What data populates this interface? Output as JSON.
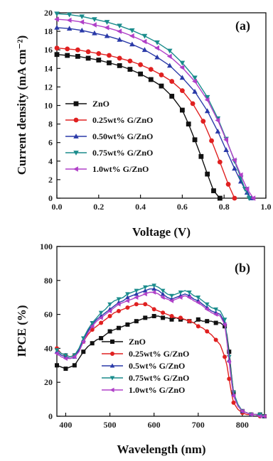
{
  "chart_data": [
    {
      "type": "line",
      "panel_label": "(a)",
      "xlabel": "Voltage (V)",
      "ylabel": "Current density (mA cm⁻²)",
      "xlim": [
        0.0,
        1.0
      ],
      "ylim": [
        0,
        20
      ],
      "xticks": [
        "0.0",
        "0.2",
        "0.4",
        "0.6",
        "0.8",
        "1.0"
      ],
      "yticks": [
        "0",
        "2",
        "4",
        "6",
        "8",
        "10",
        "12",
        "14",
        "16",
        "18",
        "20"
      ],
      "legend_position": "bottom-left",
      "series": [
        {
          "name": "ZnO",
          "color": "#111111",
          "marker": "square",
          "x": [
            0.0,
            0.05,
            0.1,
            0.15,
            0.2,
            0.25,
            0.3,
            0.35,
            0.4,
            0.45,
            0.5,
            0.55,
            0.6,
            0.63,
            0.66,
            0.69,
            0.72,
            0.75,
            0.78
          ],
          "y": [
            15.5,
            15.4,
            15.3,
            15.1,
            14.9,
            14.6,
            14.3,
            13.9,
            13.4,
            12.8,
            12.1,
            11.0,
            9.5,
            8.0,
            6.3,
            4.5,
            2.6,
            0.8,
            0.0
          ]
        },
        {
          "name": "0.25wt% G/ZnO",
          "color": "#e02020",
          "marker": "circle",
          "x": [
            0.0,
            0.05,
            0.1,
            0.15,
            0.2,
            0.25,
            0.3,
            0.35,
            0.4,
            0.45,
            0.5,
            0.55,
            0.6,
            0.65,
            0.7,
            0.74,
            0.78,
            0.82,
            0.85
          ],
          "y": [
            16.2,
            16.1,
            16.0,
            15.8,
            15.6,
            15.4,
            15.1,
            14.8,
            14.4,
            13.9,
            13.3,
            12.6,
            11.6,
            10.2,
            8.3,
            6.2,
            3.9,
            1.5,
            0.0
          ]
        },
        {
          "name": "0.50wt% G/ZnO",
          "color": "#2a3aa8",
          "marker": "triangle-up",
          "x": [
            0.0,
            0.06,
            0.12,
            0.18,
            0.24,
            0.3,
            0.36,
            0.42,
            0.48,
            0.54,
            0.6,
            0.66,
            0.72,
            0.77,
            0.81,
            0.85,
            0.88,
            0.91,
            0.93
          ],
          "y": [
            18.4,
            18.3,
            18.1,
            17.8,
            17.5,
            17.1,
            16.6,
            16.0,
            15.2,
            14.3,
            13.0,
            11.5,
            9.4,
            7.2,
            5.2,
            3.2,
            1.8,
            0.6,
            0.0
          ]
        },
        {
          "name": "0.75wt% G/ZnO",
          "color": "#1a8c8c",
          "marker": "triangle-down",
          "x": [
            0.0,
            0.06,
            0.12,
            0.18,
            0.24,
            0.3,
            0.36,
            0.42,
            0.48,
            0.54,
            0.6,
            0.66,
            0.72,
            0.77,
            0.81,
            0.85,
            0.88,
            0.9,
            0.92
          ],
          "y": [
            19.9,
            19.8,
            19.6,
            19.3,
            19.0,
            18.6,
            18.1,
            17.5,
            16.8,
            15.9,
            14.6,
            13.0,
            10.9,
            8.6,
            6.4,
            4.0,
            2.2,
            1.0,
            0.0
          ]
        },
        {
          "name": "1.0wt% G/ZnO",
          "color": "#b040c8",
          "marker": "triangle-left",
          "x": [
            0.0,
            0.06,
            0.12,
            0.18,
            0.24,
            0.3,
            0.36,
            0.42,
            0.48,
            0.54,
            0.6,
            0.66,
            0.72,
            0.77,
            0.81,
            0.85,
            0.88,
            0.91,
            0.94
          ],
          "y": [
            19.3,
            19.2,
            19.0,
            18.7,
            18.4,
            18.0,
            17.5,
            16.9,
            16.2,
            15.3,
            14.1,
            12.6,
            10.6,
            8.4,
            6.3,
            4.1,
            2.5,
            1.0,
            0.0
          ]
        }
      ]
    },
    {
      "type": "line",
      "panel_label": "(b)",
      "xlabel": "Wavelength (nm)",
      "ylabel": "IPCE (%)",
      "xlim": [
        380,
        850
      ],
      "ylim": [
        0,
        100
      ],
      "xticks": [
        "400",
        "500",
        "600",
        "700",
        "800"
      ],
      "yticks": [
        "0",
        "20",
        "40",
        "60",
        "80",
        "100"
      ],
      "legend_position": "bottom-center",
      "series": [
        {
          "name": "ZnO",
          "color": "#111111",
          "marker": "square",
          "x": [
            380,
            390,
            400,
            410,
            420,
            430,
            440,
            450,
            460,
            470,
            480,
            490,
            500,
            510,
            520,
            530,
            540,
            550,
            560,
            570,
            580,
            590,
            600,
            610,
            620,
            630,
            640,
            650,
            660,
            670,
            680,
            690,
            700,
            710,
            720,
            730,
            740,
            750,
            760,
            765,
            770,
            775,
            780,
            790,
            800,
            810,
            820,
            830,
            840,
            850
          ],
          "y": [
            30,
            29,
            28,
            29,
            30,
            34,
            38,
            41,
            43,
            45,
            46,
            48,
            50,
            51,
            52,
            53,
            54,
            55,
            56,
            57,
            58,
            58,
            59,
            59,
            58,
            58,
            57,
            58,
            57,
            57,
            56,
            55,
            57,
            56,
            56,
            56,
            55,
            55,
            53,
            48,
            38,
            25,
            14,
            6,
            3,
            2,
            1,
            1,
            1,
            0
          ]
        },
        {
          "name": "0.25wt% G/ZnO",
          "color": "#e02020",
          "marker": "circle",
          "x": [
            380,
            390,
            400,
            410,
            420,
            430,
            440,
            450,
            460,
            470,
            480,
            490,
            500,
            510,
            520,
            530,
            540,
            550,
            560,
            570,
            580,
            590,
            600,
            610,
            620,
            630,
            640,
            650,
            660,
            670,
            680,
            690,
            700,
            710,
            720,
            730,
            740,
            750,
            760,
            765,
            770,
            775,
            780,
            790,
            800,
            810,
            820,
            830,
            840,
            850
          ],
          "y": [
            40,
            37,
            36,
            35,
            36,
            39,
            44,
            48,
            51,
            53,
            55,
            57,
            59,
            61,
            62,
            63,
            64,
            65,
            66,
            66,
            66,
            65,
            63,
            62,
            61,
            60,
            59,
            58,
            58,
            57,
            56,
            55,
            53,
            52,
            50,
            48,
            45,
            42,
            35,
            30,
            22,
            14,
            8,
            4,
            2,
            1,
            1,
            1,
            0,
            0
          ]
        },
        {
          "name": "0.5wt% G/ZnO",
          "color": "#2a3aa8",
          "marker": "triangle-up",
          "x": [
            380,
            390,
            400,
            410,
            420,
            430,
            440,
            450,
            460,
            470,
            480,
            490,
            500,
            510,
            520,
            530,
            540,
            550,
            560,
            570,
            580,
            590,
            600,
            610,
            620,
            630,
            640,
            650,
            660,
            670,
            680,
            690,
            700,
            710,
            720,
            730,
            740,
            750,
            760,
            765,
            770,
            775,
            780,
            790,
            800,
            810,
            820,
            830,
            840,
            850
          ],
          "y": [
            38,
            36,
            35,
            34,
            35,
            39,
            45,
            50,
            54,
            57,
            59,
            61,
            63,
            65,
            67,
            68,
            70,
            71,
            72,
            73,
            74,
            75,
            75,
            74,
            72,
            70,
            69,
            70,
            71,
            72,
            71,
            69,
            68,
            66,
            64,
            62,
            61,
            60,
            55,
            45,
            33,
            22,
            13,
            6,
            3,
            2,
            1,
            1,
            1,
            0
          ]
        },
        {
          "name": "0.75wt% G/ZnO",
          "color": "#1a8c8c",
          "marker": "triangle-down",
          "x": [
            380,
            390,
            400,
            410,
            420,
            430,
            440,
            450,
            460,
            470,
            480,
            490,
            500,
            510,
            520,
            530,
            540,
            550,
            560,
            570,
            580,
            590,
            600,
            610,
            620,
            630,
            640,
            650,
            660,
            670,
            680,
            690,
            700,
            710,
            720,
            730,
            740,
            750,
            760,
            765,
            770,
            775,
            780,
            790,
            800,
            810,
            820,
            830,
            840,
            850
          ],
          "y": [
            39,
            37,
            36,
            35,
            36,
            40,
            46,
            51,
            55,
            58,
            61,
            63,
            66,
            68,
            69,
            70,
            72,
            73,
            74,
            75,
            76,
            77,
            77,
            76,
            74,
            72,
            71,
            72,
            73,
            74,
            73,
            71,
            70,
            68,
            66,
            64,
            63,
            62,
            57,
            47,
            35,
            24,
            14,
            7,
            3,
            2,
            1,
            1,
            1,
            0
          ]
        },
        {
          "name": "1.0wt% G/ZnO",
          "color": "#b040c8",
          "marker": "triangle-left",
          "x": [
            380,
            390,
            400,
            410,
            420,
            430,
            440,
            450,
            460,
            470,
            480,
            490,
            500,
            510,
            520,
            530,
            540,
            550,
            560,
            570,
            580,
            590,
            600,
            610,
            620,
            630,
            640,
            650,
            660,
            670,
            680,
            690,
            700,
            710,
            720,
            730,
            740,
            750,
            760,
            765,
            770,
            775,
            780,
            790,
            800,
            810,
            820,
            830,
            840,
            850
          ],
          "y": [
            37,
            35,
            34,
            34,
            35,
            38,
            44,
            49,
            53,
            56,
            58,
            60,
            62,
            64,
            66,
            67,
            68,
            69,
            70,
            71,
            72,
            73,
            73,
            72,
            70,
            69,
            68,
            69,
            70,
            71,
            70,
            68,
            67,
            65,
            63,
            61,
            60,
            59,
            54,
            44,
            32,
            21,
            12,
            6,
            3,
            2,
            1,
            1,
            0,
            0
          ]
        }
      ]
    }
  ]
}
